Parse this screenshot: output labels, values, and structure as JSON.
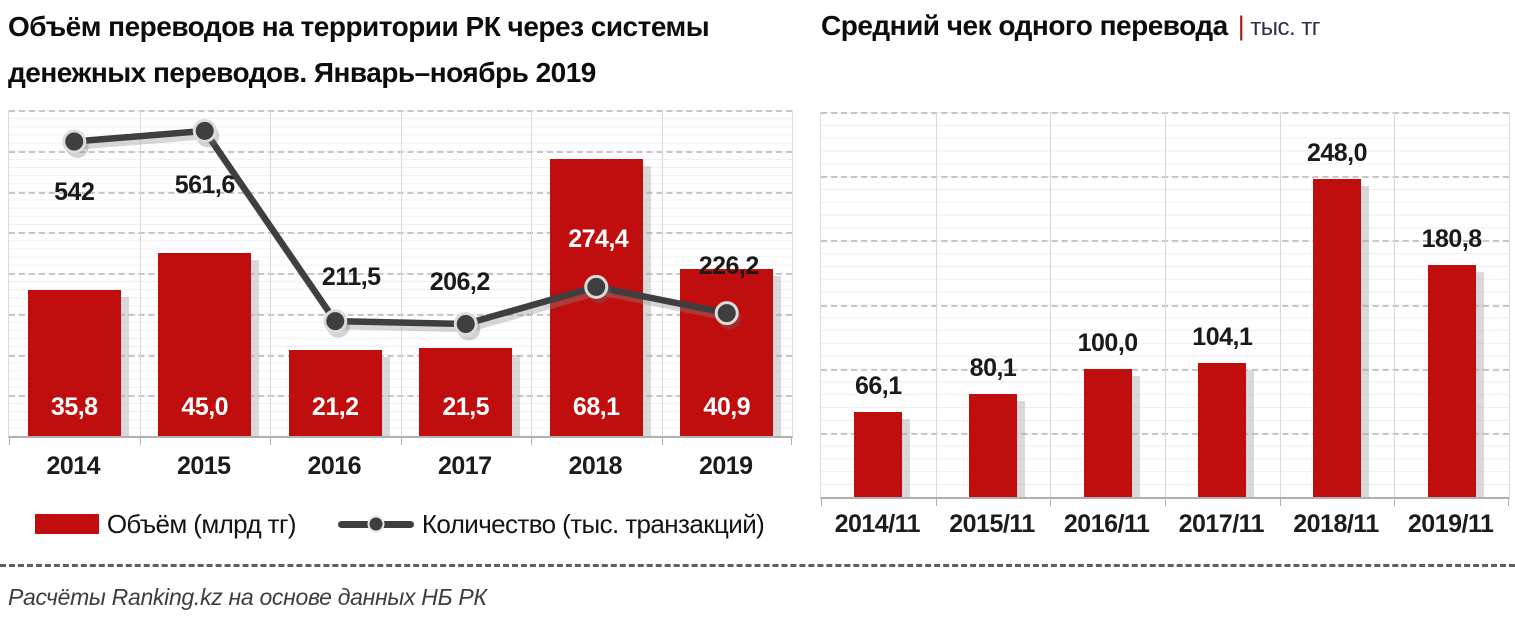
{
  "left_chart": {
    "title": "Объём переводов на территории РК через системы денежных переводов. Январь–ноябрь 2019",
    "title_line1": "Объём переводов на территории РК через системы",
    "title_line2": "денежных переводов. Январь–ноябрь 2019",
    "legend": {
      "bars_label": "Объём (млрд тг)",
      "line_label": "Количество (тыс. транзакций)"
    }
  },
  "right_chart": {
    "title": "Средний чек одного перевода",
    "unit_separator": "|",
    "unit": "тыс. тг"
  },
  "footer": {
    "source": "Расчёты Ranking.kz на основе данных НБ РК"
  },
  "colors": {
    "bar_red": "#c00d0d",
    "line_gray": "#3f3f3f",
    "marker_ring": "#dcdcdc",
    "label_black": "#1a1a1a",
    "label_white": "#ffffff",
    "unit_pipe_red": "#9e1b1b",
    "unit_text": "#2f2f4a",
    "grid_minor": "#efefef",
    "grid_major_dashed": "#c6c6c6",
    "axis_line": "#b0b0b0",
    "footer_text": "#3d3d3d"
  },
  "chart_data": [
    {
      "type": "bar",
      "subtype": "combo-bar-line",
      "title": "Объём переводов на территории РК через системы денежных переводов. Январь–ноябрь 2019",
      "categories": [
        "2014",
        "2015",
        "2016",
        "2017",
        "2018",
        "2019"
      ],
      "series": [
        {
          "name": "Объём (млрд тг)",
          "chart": "bar",
          "values": [
            35.8,
            45.0,
            21.2,
            21.5,
            68.1,
            40.9
          ],
          "labels": [
            "35,8",
            "45,0",
            "21,2",
            "21,5",
            "68,1",
            "40,9"
          ],
          "axis": {
            "min": 0,
            "max": 80,
            "major_step": 10
          }
        },
        {
          "name": "Количество (тыс. транзакций)",
          "chart": "line",
          "values": [
            542,
            561.6,
            211.5,
            206.2,
            274.4,
            226.2
          ],
          "labels": [
            "542",
            "561,6",
            "211,5",
            "206,2",
            "274,4",
            "226,2"
          ],
          "axis": {
            "min": 0,
            "max": 600
          },
          "label_dx": [
            0,
            0,
            16,
            -6,
            2,
            2
          ],
          "label_dy": [
            36,
            40,
            -58,
            -56,
            -62,
            -61
          ],
          "label_colors": [
            "#1a1a1a",
            "#1a1a1a",
            "#1a1a1a",
            "#1a1a1a",
            "#ffffff",
            "#1a1a1a"
          ]
        }
      ],
      "legend_position": "bottom",
      "grid": true
    },
    {
      "type": "bar",
      "title": "Средний чек одного перевода",
      "ylabel": "тыс. тг",
      "categories": [
        "2014/11",
        "2015/11",
        "2016/11",
        "2017/11",
        "2018/11",
        "2019/11"
      ],
      "values": [
        66.1,
        80.1,
        100.0,
        104.1,
        248.0,
        180.8
      ],
      "labels": [
        "66,1",
        "80,1",
        "100,0",
        "104,1",
        "248,0",
        "180,8"
      ],
      "ylim": [
        0,
        300
      ],
      "major_step": 50,
      "grid": true,
      "legend_position": "none"
    }
  ]
}
